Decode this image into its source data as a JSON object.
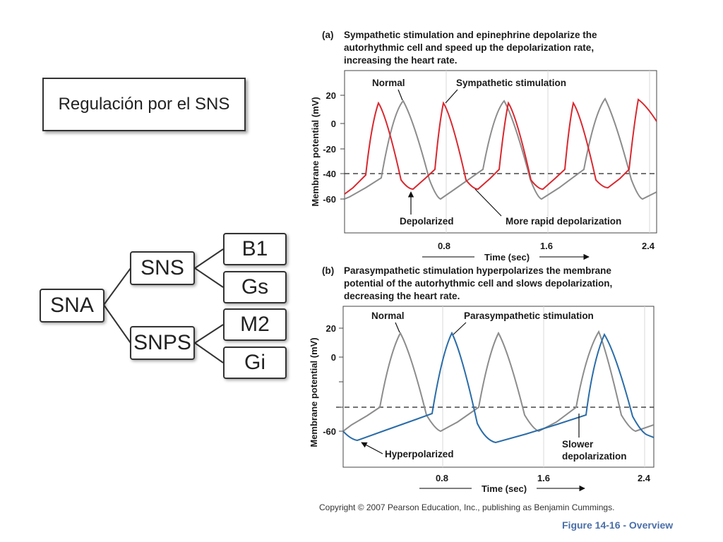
{
  "slide_title": "Regulación por el SNS",
  "tree": {
    "root": "SNA",
    "branch1": "SNS",
    "branch1_children": [
      "B1",
      "Gs"
    ],
    "branch2": "SNPS",
    "branch2_children": [
      "M2",
      "Gi"
    ]
  },
  "panel_a": {
    "tag": "(a)",
    "caption_lines": [
      "Sympathetic stimulation and epinephrine depolarize the",
      "autorhythmic cell and speed up the depolarization rate,",
      "increasing the heart rate."
    ],
    "label_normal": "Normal",
    "label_stim": "Sympathetic stimulation",
    "label_depolarized": "Depolarized",
    "label_rapid": "More rapid depolarization",
    "ylabel": "Membrane potential (mV)",
    "yticks": [
      "20",
      "0",
      "-20",
      "-40",
      "-60"
    ],
    "xticks": [
      "0.8",
      "1.6",
      "2.4"
    ],
    "xlabel": "Time (sec)"
  },
  "panel_b": {
    "tag": "(b)",
    "caption_lines": [
      "Parasympathetic stimulation hyperpolarizes the membrane",
      "potential of the autorhythmic cell and slows depolarization,",
      "decreasing the heart rate."
    ],
    "label_normal": "Normal",
    "label_stim": "Parasympathetic stimulation",
    "label_hyper": "Hyperpolarized",
    "label_slower_1": "Slower",
    "label_slower_2": "depolarization",
    "ylabel": "Membrane potential (mV)",
    "yticks": [
      "20",
      "0",
      "-60"
    ],
    "xticks": [
      "0.8",
      "1.6",
      "2.4"
    ],
    "xlabel": "Time (sec)"
  },
  "copyright": "Copyright © 2007 Pearson Education, Inc., publishing as Benjamin Cummings.",
  "figure_label": "Figure 14-16 - Overview",
  "colors": {
    "normal": "#8c8c8c",
    "sympathetic": "#d8282f",
    "parasympathetic": "#2a6ca8",
    "figure_label": "#4a6fa8"
  }
}
